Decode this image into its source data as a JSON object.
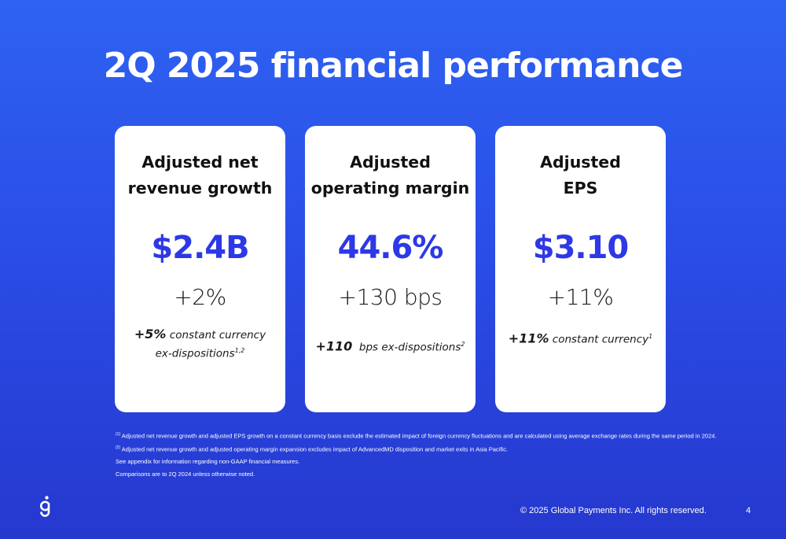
{
  "title": "2Q 2025 financial performance",
  "cards": [
    {
      "title_line1": "Adjusted net",
      "title_line2": "revenue growth",
      "value": "$2.4B",
      "change": "+2%",
      "note_bold": "+5%",
      "note_text": "constant currency",
      "note_line2": "ex-dispositions",
      "note_sup": "1,2"
    },
    {
      "title_line1": "Adjusted",
      "title_line2": "operating margin",
      "value": "44.6%",
      "change": "+130 bps",
      "note_bold": "+110",
      "note_text": "bps ex-dispositions",
      "note_sup": "2"
    },
    {
      "title_line1": "Adjusted",
      "title_line2": "EPS",
      "value": "$3.10",
      "change": "+11%",
      "note_bold": "+11%",
      "note_text": "constant currency",
      "note_sup": "1"
    }
  ],
  "footnotes": [
    {
      "marker": "(1)",
      "text": "Adjusted net revenue growth and adjusted EPS growth on a constant currency basis exclude the estimated impact of foreign currency fluctuations and are calculated using average exchange rates during the same period in 2024."
    },
    {
      "marker": "(2)",
      "text": "Adjusted net revenue growth and adjusted operating margin expansion excludes impact of AdvancedMD disposition and market exits in Asia Pacific."
    },
    {
      "marker": "",
      "text": "See appendix for information regarding non-GAAP financial measures."
    },
    {
      "marker": "",
      "text": "Comparisons are to 2Q 2024 unless otherwise noted."
    }
  ],
  "footer": {
    "copyright": "© 2025 Global Payments Inc. All rights reserved.",
    "page_number": "4"
  },
  "colors": {
    "background_top": "#2e62f2",
    "background_bottom": "#2638cf",
    "accent_value": "#2d38e6"
  },
  "logo_icon": "global-payments-g-logo"
}
